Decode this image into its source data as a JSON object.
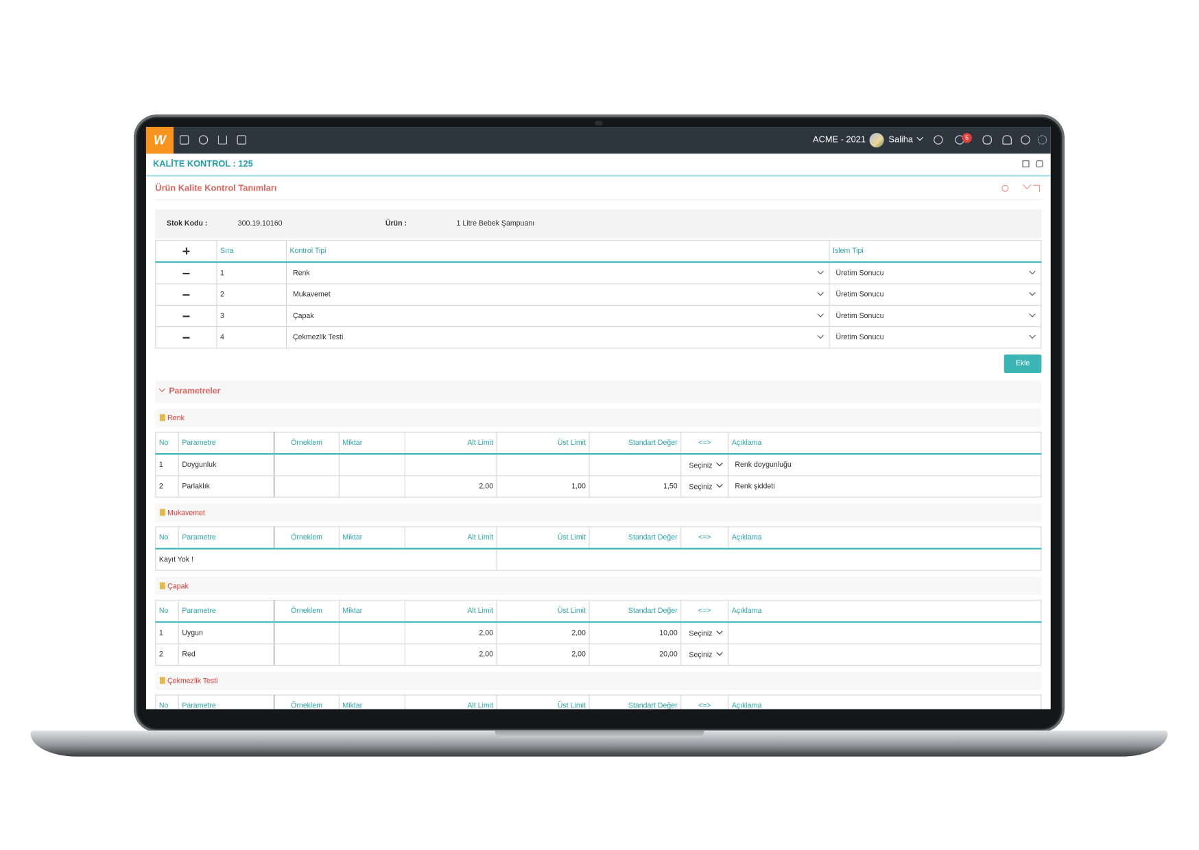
{
  "app": {
    "brand": "W",
    "company": "ACME - 2021",
    "user": "Saliha",
    "notification_count": 5
  },
  "page": {
    "title": "KALİTE KONTROL : 125",
    "panel_title": "Ürün Kalite Kontrol Tanımları"
  },
  "product": {
    "stock_code_label": "Stok Kodu :",
    "stock_code": "300.19.10160",
    "product_label": "Ürün :",
    "product": "1 Litre Bebek Şampuanı"
  },
  "controls": {
    "headers": [
      "Sıra",
      "Kontrol Tipi",
      "Islem Tipi"
    ],
    "rows": [
      [
        "1",
        "Renk",
        "Üretim Sonucu"
      ],
      [
        "2",
        "Mukavemet",
        "Üretim Sonucu"
      ],
      [
        "3",
        "Çapak",
        "Üretim Sonucu"
      ],
      [
        "4",
        "Çekmezlik Testi",
        "Üretim Sonucu"
      ]
    ]
  },
  "add_button": "Ekle",
  "parameters": {
    "title": "Parametreler",
    "headers": [
      "No",
      "Parametre",
      "Örneklem",
      "Miktar",
      "Alt Limit",
      "Üst Limit",
      "Standart Değer",
      "<=>",
      "Açıklama"
    ],
    "groups": [
      {
        "name": "Renk",
        "rows": [
          [
            "1",
            "Doygunluk",
            null,
            null,
            null,
            null,
            null,
            "Seçiniz",
            "Renk doygunluğu"
          ],
          [
            "2",
            "Parlaklık",
            null,
            null,
            "2,00",
            "1,00",
            "1,50",
            "Seçiniz",
            "Renk şiddeti"
          ]
        ]
      },
      {
        "name": "Mukavemet",
        "empty_text": "Kayıt Yok !",
        "rows": []
      },
      {
        "name": "Çapak",
        "rows": [
          [
            "1",
            "Uygun",
            null,
            null,
            "2,00",
            "2,00",
            "10,00",
            "Seçiniz",
            null
          ],
          [
            "2",
            "Red",
            null,
            null,
            "2,00",
            "2,00",
            "20,00",
            "Seçiniz",
            null
          ]
        ]
      },
      {
        "name": "Çekmezlik Testi",
        "rows": []
      }
    ]
  }
}
